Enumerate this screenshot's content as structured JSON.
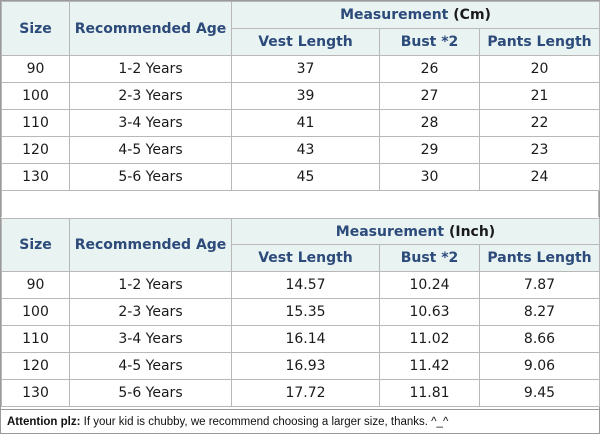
{
  "colors": {
    "header_bg": "#e8f3f2",
    "header_text": "#2c4a7a",
    "border": "#b8b8b8"
  },
  "cm_table": {
    "size_header": "Size",
    "age_header": "Recommended Age",
    "measure_title": "Measurement",
    "measure_unit": "(Cm)",
    "columns": [
      "Vest Length",
      "Bust *2",
      "Pants Length"
    ],
    "rows": [
      [
        "90",
        "1-2 Years",
        "37",
        "26",
        "20"
      ],
      [
        "100",
        "2-3 Years",
        "39",
        "27",
        "21"
      ],
      [
        "110",
        "3-4 Years",
        "41",
        "28",
        "22"
      ],
      [
        "120",
        "4-5 Years",
        "43",
        "29",
        "23"
      ],
      [
        "130",
        "5-6 Years",
        "45",
        "30",
        "24"
      ]
    ]
  },
  "inch_table": {
    "size_header": "Size",
    "age_header": "Recommended Age",
    "measure_title": "Measurement",
    "measure_unit": "(Inch)",
    "columns": [
      "Vest Length",
      "Bust *2",
      "Pants Length"
    ],
    "rows": [
      [
        "90",
        "1-2 Years",
        "14.57",
        "10.24",
        "7.87"
      ],
      [
        "100",
        "2-3 Years",
        "15.35",
        "10.63",
        "8.27"
      ],
      [
        "110",
        "3-4 Years",
        "16.14",
        "11.02",
        "8.66"
      ],
      [
        "120",
        "4-5 Years",
        "16.93",
        "11.42",
        "9.06"
      ],
      [
        "130",
        "5-6 Years",
        "17.72",
        "11.81",
        "9.45"
      ]
    ]
  },
  "note": {
    "label": "Attention plz:",
    "text": " If your kid is chubby, we recommend choosing a larger size, thanks. ^_^"
  }
}
